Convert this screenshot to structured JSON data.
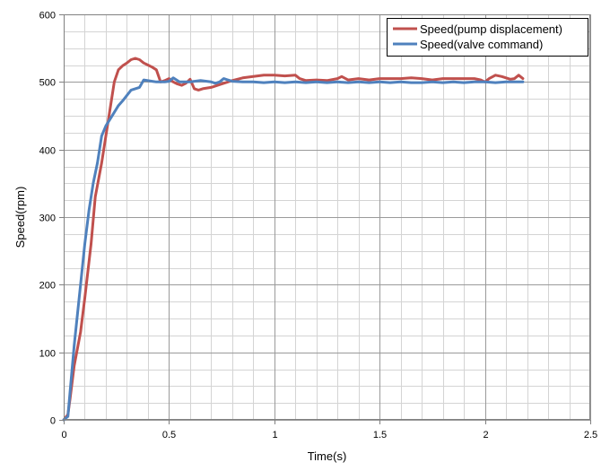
{
  "chart_data": {
    "type": "line",
    "title": "",
    "xlabel": "Time(s)",
    "ylabel": "Speed(rpm)",
    "xlim": [
      0,
      2.5
    ],
    "ylim": [
      0,
      600
    ],
    "x_ticks": [
      0,
      0.5,
      1,
      1.5,
      2,
      2.5
    ],
    "x_tick_labels": [
      "0",
      "0.5",
      "1",
      "1.5",
      "2",
      "2.5"
    ],
    "y_ticks": [
      0,
      100,
      200,
      300,
      400,
      500,
      600
    ],
    "y_tick_labels": [
      "0",
      "100",
      "200",
      "300",
      "400",
      "500",
      "600"
    ],
    "grid": true,
    "legend_position": "top-right",
    "series": [
      {
        "name": "Speed(pump displacement)",
        "color": "#c0504d",
        "x": [
          0,
          0.02,
          0.03,
          0.05,
          0.08,
          0.1,
          0.13,
          0.15,
          0.18,
          0.2,
          0.22,
          0.24,
          0.26,
          0.28,
          0.3,
          0.32,
          0.34,
          0.36,
          0.38,
          0.4,
          0.42,
          0.44,
          0.46,
          0.48,
          0.5,
          0.52,
          0.54,
          0.56,
          0.58,
          0.6,
          0.62,
          0.64,
          0.66,
          0.7,
          0.75,
          0.8,
          0.85,
          0.9,
          0.95,
          1.0,
          1.05,
          1.1,
          1.12,
          1.15,
          1.2,
          1.25,
          1.3,
          1.32,
          1.35,
          1.4,
          1.45,
          1.5,
          1.55,
          1.6,
          1.65,
          1.7,
          1.75,
          1.8,
          1.85,
          1.9,
          1.95,
          1.98,
          2.0,
          2.02,
          2.05,
          2.08,
          2.1,
          2.12,
          2.14,
          2.16,
          2.18
        ],
        "y": [
          0,
          8,
          30,
          80,
          130,
          180,
          260,
          330,
          380,
          420,
          460,
          500,
          518,
          524,
          528,
          533,
          535,
          533,
          528,
          525,
          522,
          518,
          500,
          502,
          505,
          500,
          497,
          495,
          498,
          504,
          490,
          488,
          490,
          492,
          497,
          502,
          506,
          508,
          510,
          510,
          509,
          510,
          505,
          502,
          503,
          502,
          505,
          508,
          503,
          505,
          503,
          505,
          505,
          505,
          506,
          505,
          503,
          505,
          505,
          505,
          505,
          503,
          500,
          505,
          510,
          508,
          506,
          504,
          505,
          510,
          505
        ]
      },
      {
        "name": "Speed(valve command)",
        "color": "#4f81bd",
        "x": [
          0,
          0.02,
          0.03,
          0.05,
          0.08,
          0.1,
          0.12,
          0.14,
          0.16,
          0.18,
          0.2,
          0.22,
          0.24,
          0.26,
          0.28,
          0.3,
          0.32,
          0.34,
          0.36,
          0.38,
          0.4,
          0.42,
          0.44,
          0.46,
          0.48,
          0.5,
          0.52,
          0.55,
          0.6,
          0.65,
          0.7,
          0.72,
          0.74,
          0.76,
          0.8,
          0.85,
          0.9,
          0.95,
          1.0,
          1.05,
          1.1,
          1.15,
          1.2,
          1.25,
          1.3,
          1.35,
          1.4,
          1.45,
          1.5,
          1.55,
          1.6,
          1.65,
          1.7,
          1.75,
          1.8,
          1.85,
          1.9,
          1.95,
          2.0,
          2.05,
          2.1,
          2.15,
          2.18
        ],
        "y": [
          0,
          5,
          40,
          110,
          200,
          260,
          310,
          350,
          380,
          420,
          435,
          445,
          455,
          465,
          472,
          480,
          488,
          490,
          492,
          503,
          502,
          501,
          500,
          500,
          500,
          501,
          506,
          500,
          500,
          502,
          500,
          498,
          500,
          505,
          501,
          500,
          500,
          499,
          500,
          499,
          500,
          499,
          500,
          499,
          500,
          499,
          500,
          499,
          500,
          499,
          500,
          499,
          499,
          500,
          499,
          500,
          499,
          500,
          500,
          499,
          500,
          500,
          500
        ]
      }
    ]
  }
}
